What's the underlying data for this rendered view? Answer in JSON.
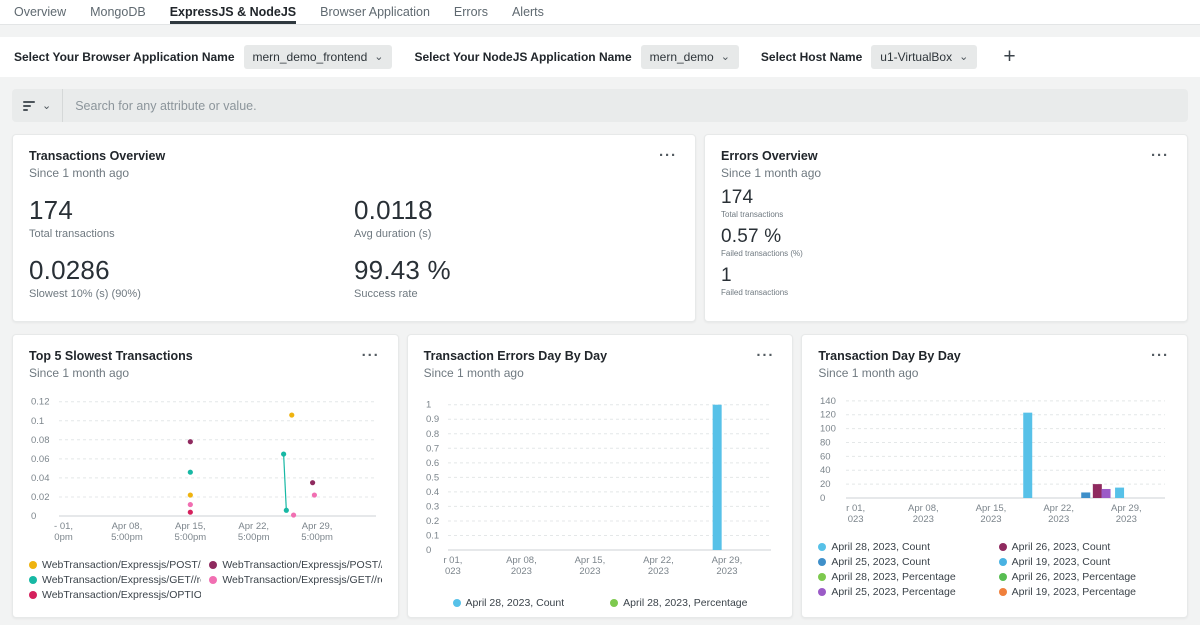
{
  "icons": {
    "ellipsis": "···",
    "caret": "⌄",
    "plus": "+"
  },
  "tabs": {
    "items": [
      {
        "label": "Overview",
        "active": false
      },
      {
        "label": "MongoDB",
        "active": false
      },
      {
        "label": "ExpressJS & NodeJS",
        "active": true
      },
      {
        "label": "Browser Application",
        "active": false
      },
      {
        "label": "Errors",
        "active": false
      },
      {
        "label": "Alerts",
        "active": false
      }
    ]
  },
  "filters": {
    "items": [
      {
        "id": "browser-application-name",
        "label": "Select Your Browser Application Name",
        "value": "mern_demo_frontend"
      },
      {
        "id": "nodejs-application-name",
        "label": "Select Your NodeJS Application Name",
        "value": "mern_demo"
      },
      {
        "id": "host-name",
        "label": "Select Host Name",
        "value": "u1-VirtualBox"
      }
    ]
  },
  "search": {
    "placeholder": "Search for any attribute or value."
  },
  "overview_cards": {
    "transactions": {
      "title": "Transactions Overview",
      "subtitle": "Since 1 month ago",
      "metrics": [
        {
          "value": "174",
          "label": "Total transactions"
        },
        {
          "value": "0.0118",
          "label": "Avg duration (s)"
        },
        {
          "value": "0.0286",
          "label": "Slowest 10% (s) (90%)"
        },
        {
          "value": "99.43 %",
          "label": "Success rate"
        }
      ]
    },
    "errors": {
      "title": "Errors Overview",
      "subtitle": "Since 1 month ago",
      "metrics": [
        {
          "value": "174",
          "label": "Total transactions"
        },
        {
          "value": "0.57 %",
          "label": "Failed transactions (%)"
        },
        {
          "value": "1",
          "label": "Failed transactions"
        }
      ]
    }
  },
  "chart_data": [
    {
      "id": "top-5-slowest-transactions",
      "type": "scatter",
      "title": "Top 5 Slowest Transactions",
      "subtitle": "Since 1 month ago",
      "y_unit": "seconds",
      "x_unit": "days since Apr 01 5:00pm",
      "ylim": [
        0,
        0.12
      ],
      "yticks": [
        0,
        0.02,
        0.04,
        0.06,
        0.08,
        0.1,
        0.12
      ],
      "ytick_labels": [
        "0",
        "0.02",
        "0.04",
        "0.06",
        "0.08",
        "0.1",
        "0.12"
      ],
      "xdomain": [
        -0.5,
        34.5
      ],
      "xticks": [
        {
          "x": 0,
          "lines": [
            "- 01,",
            "0pm"
          ]
        },
        {
          "x": 7,
          "lines": [
            "Apr 08,",
            "5:00pm"
          ]
        },
        {
          "x": 14,
          "lines": [
            "Apr 15,",
            "5:00pm"
          ]
        },
        {
          "x": 21,
          "lines": [
            "Apr 22,",
            "5:00pm"
          ]
        },
        {
          "x": 28,
          "lines": [
            "Apr 29,",
            "5:00pm"
          ]
        }
      ],
      "series": [
        {
          "name": "WebTransaction/Expressjs/POST//...",
          "color": "#efb30f",
          "runs": [
            [
              [
                14,
                0.022
              ]
            ],
            [
              [
                25.2,
                0.106
              ]
            ]
          ]
        },
        {
          "name": "WebTransaction/Expressjs/POST//r...",
          "color": "#8f2a5f",
          "runs": [
            [
              [
                14,
                0.078
              ]
            ],
            [
              [
                27.5,
                0.035
              ]
            ]
          ]
        },
        {
          "name": "WebTransaction/Expressjs/GET//re...",
          "color": "#17b8a4",
          "runs": [
            [
              [
                14,
                0.046
              ]
            ],
            [
              [
                24.3,
                0.065
              ],
              [
                24.6,
                0.006
              ]
            ]
          ]
        },
        {
          "name": "WebTransaction/Expressjs/GET//re...",
          "color": "#f16fb2",
          "runs": [
            [
              [
                14,
                0.012
              ]
            ],
            [
              [
                25.4,
                0.001
              ]
            ],
            [
              [
                27.7,
                0.022
              ]
            ]
          ]
        },
        {
          "name": "WebTransaction/Expressjs/OPTION...",
          "color": "#d5215d",
          "runs": [
            [
              [
                14,
                0.004
              ]
            ]
          ]
        }
      ]
    },
    {
      "id": "transaction-errors-day-by-day",
      "type": "bar",
      "title": "Transaction Errors Day By Day",
      "subtitle": "Since 1 month ago",
      "ylim": [
        0,
        1
      ],
      "yticks": [
        0,
        0.1,
        0.2,
        0.3,
        0.4,
        0.5,
        0.6,
        0.7,
        0.8,
        0.9,
        1
      ],
      "ytick_labels": [
        "0",
        "0.1",
        "0.2",
        "0.3",
        "0.4",
        "0.5",
        "0.6",
        "0.7",
        "0.8",
        "0.9",
        "1"
      ],
      "xdomain": [
        -0.5,
        32.5
      ],
      "xticks": [
        {
          "x": 0,
          "lines": [
            "r 01,",
            "023"
          ]
        },
        {
          "x": 7,
          "lines": [
            "Apr 08,",
            "2023"
          ]
        },
        {
          "x": 14,
          "lines": [
            "Apr 15,",
            "2023"
          ]
        },
        {
          "x": 21,
          "lines": [
            "Apr 22,",
            "2023"
          ]
        },
        {
          "x": 28,
          "lines": [
            "Apr 29,",
            "2023"
          ]
        }
      ],
      "bars": [
        {
          "name": "April 28, 2023, Count",
          "x": 27,
          "value": 1,
          "color": "#57c1e8"
        }
      ],
      "legend": [
        {
          "label": "April 28, 2023, Count",
          "color": "#57c1e8"
        },
        {
          "label": "April 28, 2023, Percentage",
          "color": "#7dc94e"
        }
      ],
      "legend_position": "center"
    },
    {
      "id": "transaction-day-by-day",
      "type": "bar",
      "title": "Transaction Day By Day",
      "subtitle": "Since 1 month ago",
      "ylim": [
        0,
        140
      ],
      "yticks": [
        0,
        20,
        40,
        60,
        80,
        100,
        120,
        140
      ],
      "ytick_labels": [
        "0",
        "20",
        "40",
        "60",
        "80",
        "100",
        "120",
        "140"
      ],
      "xdomain": [
        -1,
        32
      ],
      "xticks": [
        {
          "x": 0,
          "lines": [
            "r 01,",
            "023"
          ]
        },
        {
          "x": 7,
          "lines": [
            "Apr 08,",
            "2023"
          ]
        },
        {
          "x": 14,
          "lines": [
            "Apr 15,",
            "2023"
          ]
        },
        {
          "x": 21,
          "lines": [
            "Apr 22,",
            "2023"
          ]
        },
        {
          "x": 28,
          "lines": [
            "Apr 29,",
            "2023"
          ]
        }
      ],
      "bars": [
        {
          "name": "April 19, 2023, Count",
          "x": 17.8,
          "value": 123,
          "color": "#57c1e8"
        },
        {
          "name": "April 25, 2023, Count",
          "x": 23.8,
          "value": 8,
          "color": "#3f8fc9"
        },
        {
          "name": "April 26, 2023, Count",
          "x": 25.0,
          "value": 20,
          "color": "#8f2a5f"
        },
        {
          "name": "April 25, 2023, Percentage",
          "x": 25.9,
          "value": 13,
          "color": "#9b5bc7"
        },
        {
          "name": "April 28, 2023, Count",
          "x": 27.3,
          "value": 15,
          "color": "#57c1e8"
        }
      ],
      "legend": [
        {
          "label": "April 28, 2023, Count",
          "color": "#57c1e8"
        },
        {
          "label": "April 26, 2023, Count",
          "color": "#8f2a5f"
        },
        {
          "label": "April 25, 2023, Count",
          "color": "#3f8fc9"
        },
        {
          "label": "April 19, 2023, Count",
          "color": "#49b2e2"
        },
        {
          "label": "April 28, 2023, Percentage",
          "color": "#7dc94e"
        },
        {
          "label": "April 26, 2023, Percentage",
          "color": "#58bd52"
        },
        {
          "label": "April 25, 2023, Percentage",
          "color": "#9b5bc7"
        },
        {
          "label": "April 19, 2023, Percentage",
          "color": "#f0803c"
        }
      ]
    }
  ]
}
